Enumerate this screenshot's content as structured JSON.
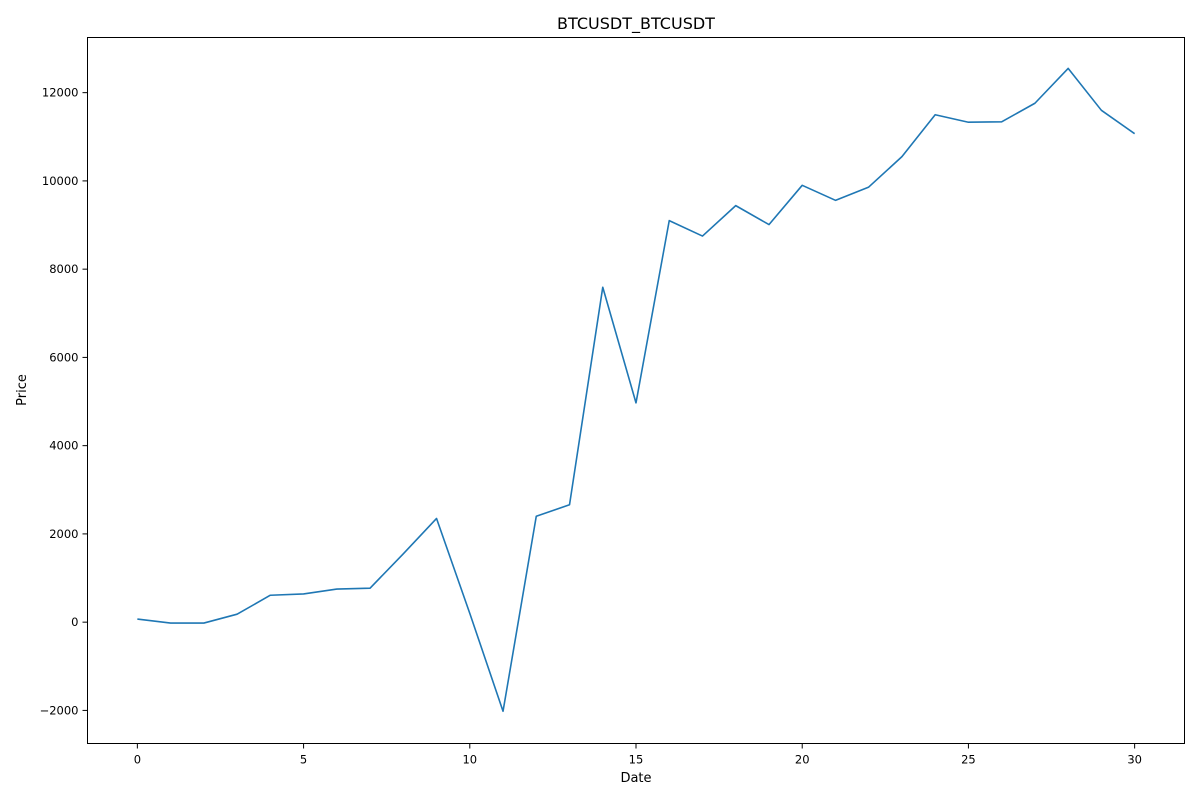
{
  "chart_data": {
    "type": "line",
    "title": "BTCUSDT_BTCUSDT",
    "xlabel": "Date",
    "ylabel": "Price",
    "xlim": [
      -1.5,
      31.5
    ],
    "ylim": [
      -2750,
      13250
    ],
    "xticks": [
      0,
      5,
      10,
      15,
      20,
      25,
      30
    ],
    "yticks": [
      -2000,
      0,
      2000,
      4000,
      6000,
      8000,
      10000,
      12000
    ],
    "xtick_labels": [
      "0",
      "5",
      "10",
      "15",
      "20",
      "25",
      "30"
    ],
    "ytick_labels": [
      "−2000",
      "0",
      "2000",
      "4000",
      "6000",
      "8000",
      "10000",
      "12000"
    ],
    "grid": false,
    "series": [
      {
        "color": "#1f77b4",
        "x": [
          0,
          1,
          2,
          3,
          4,
          5,
          6,
          7,
          8,
          9,
          10,
          11,
          12,
          13,
          14,
          15,
          16,
          17,
          18,
          19,
          20,
          21,
          22,
          23,
          24,
          25,
          26,
          27,
          28,
          29,
          30
        ],
        "values": [
          70,
          -20,
          -20,
          180,
          610,
          640,
          750,
          770,
          1550,
          2350,
          200,
          -2020,
          2400,
          2660,
          7590,
          4970,
          9100,
          8750,
          9440,
          9010,
          9900,
          9560,
          9860,
          10550,
          11500,
          11330,
          11340,
          11760,
          12550,
          11600,
          11070
        ]
      }
    ]
  }
}
